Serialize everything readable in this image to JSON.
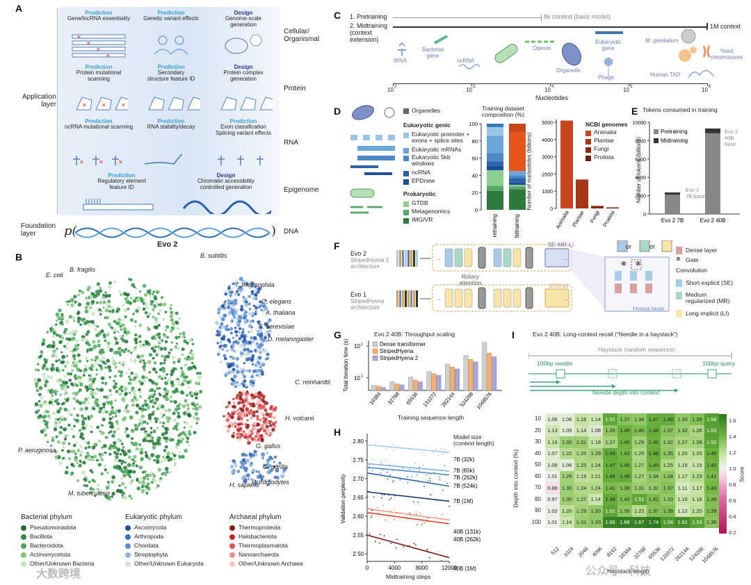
{
  "panels": {
    "A": "A",
    "B": "B",
    "C": "C",
    "D": "D",
    "E": "E",
    "F": "F",
    "G": "G",
    "H": "H",
    "I": "I"
  },
  "panelA": {
    "layer_labels": {
      "application": "Application\nlayer",
      "foundation": "Foundation\nlayer"
    },
    "rows": [
      {
        "name": "Cellular/\nOrganismal",
        "items": [
          {
            "kind": "Prediction",
            "text": "Gene/lncRNA essentiality"
          },
          {
            "kind": "Prediction",
            "text": "Genetic variant effects"
          },
          {
            "kind": "Design",
            "text": "Genome-scale\ngeneration"
          }
        ]
      },
      {
        "name": "Protein",
        "items": [
          {
            "kind": "Prediction",
            "text": "Protein mutational\nscanning"
          },
          {
            "kind": "Prediction",
            "text": "Secondary\nstructure feature ID"
          },
          {
            "kind": "Design",
            "text": "Protein complex\ngeneration"
          }
        ]
      },
      {
        "name": "RNA",
        "items": [
          {
            "kind": "Prediction",
            "text": "ncRNA mutational scanning"
          },
          {
            "kind": "Prediction",
            "text": "RNA stability/decay"
          },
          {
            "kind": "Prediction",
            "text": "Exon classification\nSplicing variant effects"
          }
        ]
      },
      {
        "name": "Epigenome",
        "items": [
          {
            "kind": "Prediction",
            "text": "Regulatory element\nfeature ID"
          },
          {
            "kind": "Design",
            "text": "Chromatin accessibility\ncontrolled generation"
          }
        ]
      }
    ],
    "dna_label": "DNA",
    "p_symbol": "p(",
    "close_paren": ")",
    "model_name": "Evo 2"
  },
  "panelB": {
    "labels": [
      "E. coli",
      "B. fragilis",
      "B. subtilis",
      "T. thermophila",
      "C. elegans",
      "A. thaliana",
      "S. cerevisiae",
      "D. melanogaster",
      "C. reinhardtii",
      "H. volcanii",
      "G. gallus",
      "G. gorilla",
      "H. sapiens",
      "P. troglodytes",
      "P. aeruginosa",
      "M. tuberculosis"
    ],
    "legend": [
      {
        "title": "Bacterial phylum",
        "items": [
          {
            "name": "Pseudomonadota",
            "color": "#1f6e34"
          },
          {
            "name": "Bacillota",
            "color": "#2e8b44"
          },
          {
            "name": "Bacteroidota",
            "color": "#4aa55a"
          },
          {
            "name": "Actinomycetota",
            "color": "#7cc27a"
          },
          {
            "name": "Other/Unknown Bacteria",
            "color": "#c4e3bf"
          }
        ]
      },
      {
        "title": "Eukaryotic phylum",
        "items": [
          {
            "name": "Ascomycota",
            "color": "#1d4e9c"
          },
          {
            "name": "Arthropoda",
            "color": "#3a6fb8"
          },
          {
            "name": "Chordata",
            "color": "#5a8bcc"
          },
          {
            "name": "Streptophyta",
            "color": "#8fb2de"
          },
          {
            "name": "Other/Unknown Eukaryota",
            "color": "#cfdff2"
          }
        ]
      },
      {
        "title": "Archaeal phylum",
        "items": [
          {
            "name": "Thermoproteota",
            "color": "#8c1c1c"
          },
          {
            "name": "Halobacteriota",
            "color": "#c02a2a"
          },
          {
            "name": "Thermoplasmatota",
            "color": "#e05555"
          },
          {
            "name": "Nanoarchaeota",
            "color": "#f08a8a"
          },
          {
            "name": "Other/Unknown Archaea",
            "color": "#f7c4c4"
          }
        ]
      }
    ]
  },
  "panelC": {
    "pretraining": "1. Pretraining",
    "pretrain_note": "8k context (base model)",
    "midtraining": "2. Midtraining\n(context\nextension)",
    "midtrain_note": "1M context",
    "xlabel": "Nucleotides",
    "ticks": [
      "10",
      "10",
      "10",
      "10",
      "10"
    ],
    "tick_exp": [
      "2",
      "3",
      "4",
      "5",
      "6"
    ],
    "items": [
      "tRNA",
      "Bacterial\ngene",
      "ncRNA",
      "Operon",
      "Organelle",
      "Eukaryotic\ngene",
      "Phage",
      "M. genitalium",
      "Human TAD",
      "Yeast\nchromosome"
    ]
  },
  "panelD": {
    "legend_organelles": "Organelles",
    "euk_title": "Eukaryotic genic",
    "euk_items": [
      "Eukaryotic promoter +\nexons + splice sites",
      "Eukaryotic mRNAs",
      "Eukaryotic 5kb\nwindows",
      "ncRNA",
      "EPDnew"
    ],
    "prok_title": "Prokaryotic",
    "prok_items": [
      "GTDB",
      "Metagenomics",
      "IMG/VR"
    ],
    "comp_title": "Training dataset\ncomposition (%)",
    "comp_bars": [
      "Pretraining",
      "Midtraining"
    ],
    "comp_ticks": [
      "0",
      "20",
      "40",
      "60",
      "80",
      "100"
    ],
    "ncbi_title": "NCBI genomes",
    "ncbi_ylabel": "Number of nucleotides (billions)",
    "chart_data": {
      "type": "bar",
      "categories": [
        "Animalia",
        "Plantae",
        "Fungi",
        "Protista"
      ],
      "values": [
        5100,
        1680,
        150,
        60
      ],
      "ylim": [
        0,
        5000
      ],
      "ticks": [
        "0",
        "1000",
        "2000",
        "3000",
        "4000",
        "5000"
      ]
    }
  },
  "panelE": {
    "title": "Tokens consumed in training",
    "ylabel": "Number of tokens (billions)",
    "legend": [
      "Pretraining",
      "Midtraining"
    ],
    "chart_data": {
      "type": "bar",
      "categories": [
        "Evo 2 7B",
        "Evo 2 40B"
      ],
      "series": [
        {
          "name": "Pretraining",
          "values": [
            2100,
            8800
          ]
        },
        {
          "name": "Midtraining",
          "values": [
            250,
            520
          ]
        }
      ],
      "ylim": [
        0,
        10000
      ],
      "ticks": [
        "0",
        "2000",
        "4000",
        "6000",
        "8000",
        "10000"
      ]
    },
    "anno7b": "Evo 2\n7B base",
    "anno40b": "Evo 2\n40B\nbase"
  },
  "panelF": {
    "evo2": "Evo 2",
    "evo2_arch": "StripedHyena 2\narchitecture",
    "evo1": "Evo 1",
    "evo1_arch": "StripedHyena\narchitecture",
    "rotary": "Rotary\nattention",
    "se_label": "SE-MR-LI",
    "li_label": "LI-LI-LI",
    "or1": "or",
    "or2": "or",
    "hyena": "Hyena layer",
    "legend": {
      "dense": "Dense layer",
      "gate": "Gate",
      "conv": "Convolution",
      "se": "Short explicit (SE)",
      "mr": "Medium\nregularized (MR)",
      "li": "Long implicit (LI)"
    }
  },
  "panelG": {
    "title": "Evo 2 40B: Throughput scaling",
    "ylabel": "Total iteration time (s)",
    "xlabel": "Training sequence length",
    "y_ticks": [
      "10",
      "10"
    ],
    "legend": [
      "Dense transformer",
      "StripedHyena",
      "StripedHyena 2"
    ],
    "chart_data": {
      "type": "bar",
      "categories": [
        "16384",
        "32768",
        "65536",
        "131072",
        "262144",
        "524288",
        "1048576"
      ],
      "series": [
        {
          "name": "Dense transformer",
          "values": [
            5.8,
            7.5,
            10.5,
            16,
            27,
            50,
            130
          ]
        },
        {
          "name": "StripedHyena",
          "values": [
            5.5,
            6.5,
            8.5,
            13.5,
            22,
            38,
            60
          ]
        },
        {
          "name": "StripedHyena 2",
          "values": [
            5,
            6,
            7.5,
            12,
            19,
            32,
            46
          ]
        }
      ]
    }
  },
  "panelH": {
    "ylabel": "Validation perplexity",
    "xlabel": "Midtraining steps",
    "legend_title": "Model size\n(context length)",
    "chart_data": {
      "type": "line",
      "xlim": [
        0,
        12000
      ],
      "ylim": [
        2.48,
        2.82
      ],
      "x_ticks": [
        "0",
        "4000",
        "8000",
        "12000"
      ],
      "y_ticks": [
        "2.50",
        "2.55",
        "2.60",
        "2.65",
        "2.70",
        "2.75",
        "2.80"
      ],
      "series": [
        {
          "name": "7B (32k)",
          "start": 2.79,
          "end": 2.77,
          "color": "#a8cbe8"
        },
        {
          "name": "7B (65k)",
          "start": 2.74,
          "end": 2.72,
          "color": "#7fb1de"
        },
        {
          "name": "7B (262k)",
          "start": 2.73,
          "end": 2.71,
          "color": "#4f8ccb"
        },
        {
          "name": "7B (524k)",
          "start": 2.715,
          "end": 2.68,
          "color": "#2d64a8"
        },
        {
          "name": "7B (1M)",
          "start": 2.665,
          "end": 2.64,
          "color": "#17376e"
        },
        {
          "name": "40B (131k)",
          "start": 2.62,
          "end": 2.59,
          "color": "#f29a82"
        },
        {
          "name": "40B (262k)",
          "start": 2.61,
          "end": 2.58,
          "color": "#d9432c"
        },
        {
          "name": "40B (1M)",
          "start": 2.55,
          "end": 2.49,
          "color": "#7a1010"
        }
      ]
    }
  },
  "panelI": {
    "title": "Evo 2 40B: Long-context recall (“Needle in a haystack”)",
    "haystack": "Haystack (random sequence)",
    "needle": "100bp needle",
    "query": "100bp query",
    "depth": "Needle depth into context",
    "ylabel": "Depth into context (%)",
    "xlabel": "Haystack length",
    "cbar_label": "Score",
    "cbar_ticks": [
      "0.2",
      "0.4",
      "0.6",
      "0.8",
      "1.0",
      "1.2",
      "1.4",
      "1.6"
    ],
    "chart_data": {
      "type": "heatmap",
      "x": [
        "512",
        "1024",
        "2048",
        "4096",
        "8192",
        "16384",
        "32768",
        "65536",
        "131072",
        "262144",
        "524288",
        "1048576"
      ],
      "y": [
        "10",
        "20",
        "30",
        "40",
        "50",
        "60",
        "70",
        "80",
        "90",
        "100"
      ],
      "z": [
        [
          1.06,
          1.06,
          1.18,
          1.14,
          1.51,
          1.37,
          1.34,
          1.47,
          1.49,
          1.33,
          1.39,
          1.54
        ],
        [
          1.13,
          1.05,
          1.14,
          1.08,
          1.35,
          1.46,
          1.4,
          1.48,
          1.37,
          1.32,
          1.26,
          1.53
        ],
        [
          1.16,
          1.3,
          1.31,
          1.18,
          1.27,
          1.45,
          1.29,
          1.46,
          1.32,
          1.27,
          1.28,
          1.52
        ],
        [
          1.07,
          1.22,
          1.25,
          1.29,
          1.49,
          1.43,
          1.25,
          1.48,
          1.35,
          1.2,
          1.2,
          1.46
        ],
        [
          1.08,
          1.06,
          1.25,
          1.24,
          1.47,
          1.45,
          1.27,
          1.45,
          1.25,
          1.16,
          1.15,
          1.45
        ],
        [
          1.01,
          1.29,
          1.19,
          1.21,
          1.48,
          1.48,
          1.27,
          1.34,
          1.34,
          1.17,
          1.23,
          1.41
        ],
        [
          0.88,
          1.3,
          1.24,
          1.24,
          1.41,
          1.38,
          1.31,
          1.32,
          1.37,
          1.11,
          1.17,
          1.43
        ],
        [
          0.97,
          1.3,
          1.27,
          1.14,
          1.49,
          1.4,
          1.51,
          1.41,
          1.33,
          1.16,
          1.18,
          1.39
        ],
        [
          1.02,
          1.2,
          1.29,
          1.33,
          1.51,
          1.35,
          1.22,
          1.37,
          1.39,
          1.12,
          1.2,
          1.39
        ],
        [
          1.01,
          1.14,
          1.31,
          1.33,
          1.66,
          1.68,
          1.67,
          1.74,
          1.56,
          1.61,
          1.53,
          1.36
        ]
      ]
    }
  },
  "watermark": "大数跨境",
  "watermark2": "公众号 · 科技"
}
